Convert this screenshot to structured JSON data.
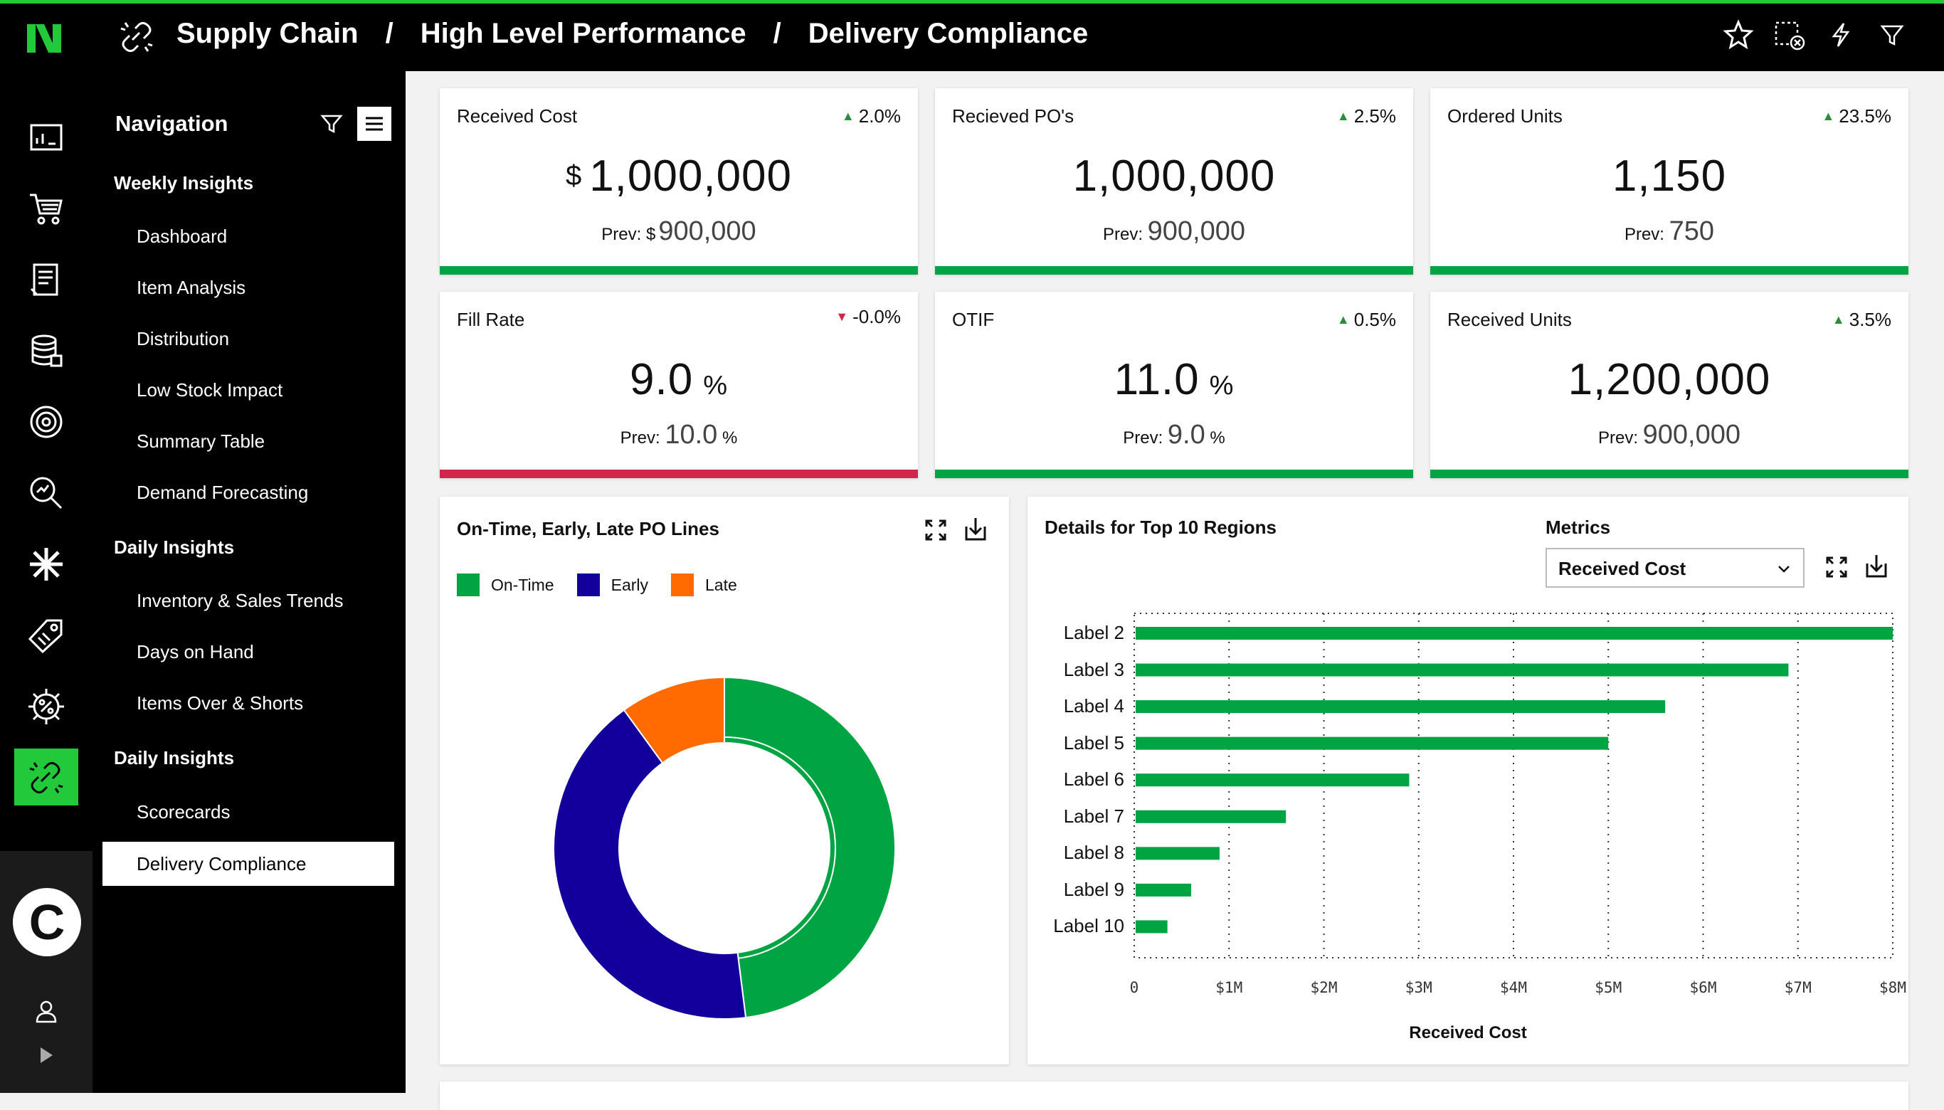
{
  "breadcrumb": [
    "Supply Chain",
    "High Level Performance",
    "Delivery Compliance"
  ],
  "breadcrumb_separator": "/",
  "icons": {
    "logo": "n-logo-icon",
    "crumb": "link-icon",
    "top": [
      "star-icon",
      "clear-selection-icon",
      "lightning-icon",
      "filter-icon"
    ],
    "rail": [
      "dashboard-icon",
      "cart-icon",
      "report-icon",
      "database-icon",
      "target-icon",
      "search-analytics-icon",
      "asterisk-icon",
      "tag-icon",
      "percent-gear-icon",
      "link-icon"
    ]
  },
  "rail_bottom": {
    "avatar_letter": "C"
  },
  "nav": {
    "title": "Navigation",
    "sections": [
      {
        "label": "Weekly Insights",
        "items": [
          "Dashboard",
          "Item Analysis",
          "Distribution",
          "Low Stock Impact",
          "Summary Table",
          "Demand Forecasting"
        ]
      },
      {
        "label": "Daily Insights",
        "items": [
          "Inventory & Sales Trends",
          "Days on Hand",
          "Items Over & Shorts"
        ]
      },
      {
        "label": "Daily Insights",
        "items": [
          "Scorecards",
          "Delivery Compliance"
        ]
      }
    ],
    "active_item": "Delivery Compliance"
  },
  "kpis": [
    {
      "title": "Received Cost",
      "delta": "2.0%",
      "direction": "up",
      "prefix": "$",
      "value": "1,000,000",
      "suffix": "",
      "prev_label": "Prev:",
      "prev_prefix": "$",
      "prev_value": "900,000",
      "prev_suffix": "",
      "status_color": "#00a443"
    },
    {
      "title": "Recieved PO's",
      "delta": "2.5%",
      "direction": "up",
      "prefix": "",
      "value": "1,000,000",
      "suffix": "",
      "prev_label": "Prev:",
      "prev_prefix": "",
      "prev_value": "900,000",
      "prev_suffix": "",
      "status_color": "#00a443"
    },
    {
      "title": "Ordered Units",
      "delta": "23.5%",
      "direction": "up",
      "prefix": "",
      "value": "1,150",
      "suffix": "",
      "prev_label": "Prev:",
      "prev_prefix": "",
      "prev_value": "750",
      "prev_suffix": "",
      "status_color": "#00a443"
    },
    {
      "title": "Fill Rate",
      "delta": "-0.0%",
      "direction": "down",
      "prefix": "",
      "value": "9.0",
      "suffix": "%",
      "prev_label": "Prev:",
      "prev_prefix": "",
      "prev_value": "10.0",
      "prev_suffix": "%",
      "status_color": "#d0264a"
    },
    {
      "title": "OTIF",
      "delta": "0.5%",
      "direction": "up",
      "prefix": "",
      "value": "11.0",
      "suffix": "%",
      "prev_label": "Prev:",
      "prev_prefix": "",
      "prev_value": "9.0",
      "prev_suffix": "%",
      "status_color": "#00a443"
    },
    {
      "title": "Received Units",
      "delta": "3.5%",
      "direction": "up",
      "prefix": "",
      "value": "1,200,000",
      "suffix": "",
      "prev_label": "Prev:",
      "prev_prefix": "",
      "prev_value": "900,000",
      "prev_suffix": "",
      "status_color": "#00a443"
    }
  ],
  "colors": {
    "green": "#00a443",
    "blue": "#13009c",
    "orange": "#ff6b00",
    "red": "#d0264a",
    "up_arrow": "#2e8b3a",
    "down_arrow": "#d0264a"
  },
  "donut_card": {
    "title": "On-Time, Early, Late PO Lines",
    "icons": [
      "expand-icon",
      "download-icon"
    ]
  },
  "regions_card": {
    "title": "Details for Top 10 Regions",
    "metrics_label": "Metrics",
    "metrics_selected": "Received Cost",
    "icons": [
      "expand-icon",
      "download-icon"
    ]
  },
  "chart_data": [
    {
      "type": "pie",
      "title": "On-Time, Early, Late PO Lines",
      "categories": [
        "On-Time",
        "Early",
        "Late"
      ],
      "values": [
        48,
        42,
        10
      ],
      "colors": [
        "#00a443",
        "#13009c",
        "#ff6b00"
      ],
      "legend": "top-left",
      "donut": true
    },
    {
      "type": "bar",
      "orientation": "horizontal",
      "title": "Details for Top 10 Regions",
      "categories": [
        "Label 2",
        "Label 3",
        "Label 4",
        "Label 5",
        "Label 6",
        "Label 7",
        "Label 8",
        "Label 9",
        "Label 10"
      ],
      "values": [
        8.0,
        6.9,
        5.6,
        5.0,
        2.9,
        1.6,
        0.9,
        0.6,
        0.35
      ],
      "xlabel": "Received Cost",
      "xlim": [
        0,
        8
      ],
      "xticks": [
        "0",
        "$1M",
        "$2M",
        "$3M",
        "$4M",
        "$5M",
        "$6M",
        "$7M",
        "$8M"
      ],
      "grid": true,
      "color": "#00a443"
    }
  ]
}
